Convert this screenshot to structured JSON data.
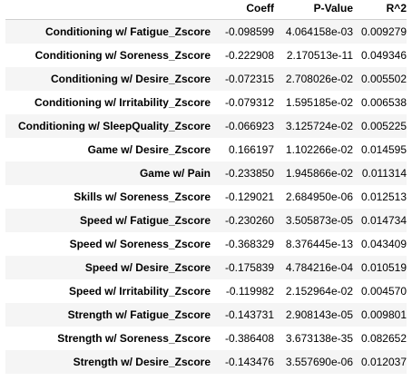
{
  "table": {
    "columns": [
      "Coeff",
      "P-Value",
      "R^2"
    ],
    "rows": [
      {
        "label": "Conditioning w/ Fatigue_Zscore",
        "coeff": "-0.098599",
        "pvalue": "4.064158e-03",
        "r2": "0.009279"
      },
      {
        "label": "Conditioning w/ Soreness_Zscore",
        "coeff": "-0.222908",
        "pvalue": "2.170513e-11",
        "r2": "0.049346"
      },
      {
        "label": "Conditioning w/ Desire_Zscore",
        "coeff": "-0.072315",
        "pvalue": "2.708026e-02",
        "r2": "0.005502"
      },
      {
        "label": "Conditioning w/ Irritability_Zscore",
        "coeff": "-0.079312",
        "pvalue": "1.595185e-02",
        "r2": "0.006538"
      },
      {
        "label": "Conditioning w/ SleepQuality_Zscore",
        "coeff": "-0.066923",
        "pvalue": "3.125724e-02",
        "r2": "0.005225"
      },
      {
        "label": "Game w/ Desire_Zscore",
        "coeff": "0.166197",
        "pvalue": "1.102266e-02",
        "r2": "0.014595"
      },
      {
        "label": "Game w/ Pain",
        "coeff": "-0.233850",
        "pvalue": "1.945866e-02",
        "r2": "0.011314"
      },
      {
        "label": "Skills w/ Soreness_Zscore",
        "coeff": "-0.129021",
        "pvalue": "2.684950e-06",
        "r2": "0.012513"
      },
      {
        "label": "Speed w/ Fatigue_Zscore",
        "coeff": "-0.230260",
        "pvalue": "3.505873e-05",
        "r2": "0.014734"
      },
      {
        "label": "Speed w/ Soreness_Zscore",
        "coeff": "-0.368329",
        "pvalue": "8.376445e-13",
        "r2": "0.043409"
      },
      {
        "label": "Speed w/ Desire_Zscore",
        "coeff": "-0.175839",
        "pvalue": "4.784216e-04",
        "r2": "0.010519"
      },
      {
        "label": "Speed w/ Irritability_Zscore",
        "coeff": "-0.119982",
        "pvalue": "2.152964e-02",
        "r2": "0.004570"
      },
      {
        "label": "Strength w/ Fatigue_Zscore",
        "coeff": "-0.143731",
        "pvalue": "2.908143e-05",
        "r2": "0.009801"
      },
      {
        "label": "Strength w/ Soreness_Zscore",
        "coeff": "-0.386408",
        "pvalue": "3.673138e-35",
        "r2": "0.082652"
      },
      {
        "label": "Strength w/ Desire_Zscore",
        "coeff": "-0.143476",
        "pvalue": "3.557690e-06",
        "r2": "0.012037"
      }
    ]
  }
}
